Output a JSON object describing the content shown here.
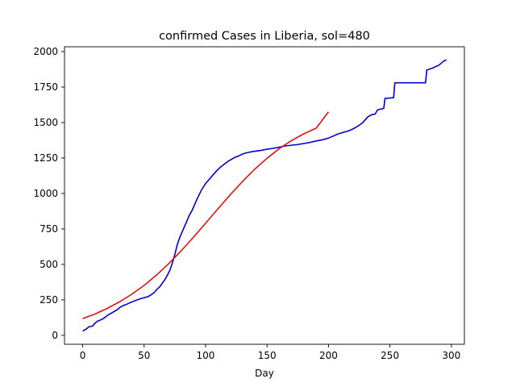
{
  "chart_data": {
    "type": "line",
    "title": "confirmed Cases in Liberia, sol=480",
    "xlabel": "Day",
    "ylabel": "",
    "xlim": [
      -14.8,
      310.6
    ],
    "ylim": [
      -63,
      2034
    ],
    "xticks": [
      0,
      50,
      100,
      150,
      200,
      250,
      300
    ],
    "yticks": [
      0,
      250,
      500,
      750,
      1000,
      1250,
      1500,
      1750,
      2000
    ],
    "grid": false,
    "series": [
      {
        "color": "#0000cc",
        "points": [
          [
            0,
            30
          ],
          [
            3,
            45
          ],
          [
            5,
            60
          ],
          [
            8,
            65
          ],
          [
            10,
            85
          ],
          [
            12,
            100
          ],
          [
            15,
            110
          ],
          [
            18,
            125
          ],
          [
            20,
            140
          ],
          [
            23,
            155
          ],
          [
            26,
            170
          ],
          [
            28,
            180
          ],
          [
            30,
            195
          ],
          [
            33,
            210
          ],
          [
            36,
            220
          ],
          [
            38,
            228
          ],
          [
            40,
            235
          ],
          [
            43,
            245
          ],
          [
            45,
            252
          ],
          [
            47,
            258
          ],
          [
            50,
            265
          ],
          [
            53,
            272
          ],
          [
            55,
            282
          ],
          [
            58,
            300
          ],
          [
            60,
            320
          ],
          [
            63,
            345
          ],
          [
            65,
            370
          ],
          [
            67,
            395
          ],
          [
            69,
            425
          ],
          [
            71,
            460
          ],
          [
            73,
            510
          ],
          [
            75,
            570
          ],
          [
            77,
            640
          ],
          [
            79,
            690
          ],
          [
            81,
            730
          ],
          [
            83,
            770
          ],
          [
            85,
            810
          ],
          [
            87,
            850
          ],
          [
            89,
            880
          ],
          [
            91,
            920
          ],
          [
            93,
            960
          ],
          [
            95,
            995
          ],
          [
            97,
            1030
          ],
          [
            100,
            1070
          ],
          [
            103,
            1100
          ],
          [
            106,
            1130
          ],
          [
            109,
            1160
          ],
          [
            112,
            1185
          ],
          [
            115,
            1205
          ],
          [
            118,
            1225
          ],
          [
            121,
            1240
          ],
          [
            124,
            1255
          ],
          [
            127,
            1265
          ],
          [
            130,
            1278
          ],
          [
            134,
            1288
          ],
          [
            138,
            1295
          ],
          [
            142,
            1300
          ],
          [
            146,
            1305
          ],
          [
            150,
            1312
          ],
          [
            155,
            1318
          ],
          [
            160,
            1326
          ],
          [
            165,
            1335
          ],
          [
            170,
            1340
          ],
          [
            175,
            1345
          ],
          [
            180,
            1352
          ],
          [
            185,
            1360
          ],
          [
            190,
            1370
          ],
          [
            195,
            1378
          ],
          [
            200,
            1390
          ],
          [
            204,
            1405
          ],
          [
            208,
            1420
          ],
          [
            212,
            1430
          ],
          [
            216,
            1440
          ],
          [
            220,
            1455
          ],
          [
            224,
            1475
          ],
          [
            228,
            1500
          ],
          [
            230,
            1520
          ],
          [
            232,
            1540
          ],
          [
            235,
            1555
          ],
          [
            238,
            1560
          ],
          [
            240,
            1590
          ],
          [
            243,
            1595
          ],
          [
            245,
            1600
          ],
          [
            246,
            1670
          ],
          [
            253,
            1675
          ],
          [
            254,
            1780
          ],
          [
            262,
            1780
          ],
          [
            270,
            1780
          ],
          [
            279,
            1780
          ],
          [
            280,
            1870
          ],
          [
            285,
            1885
          ],
          [
            290,
            1905
          ],
          [
            294,
            1935
          ],
          [
            296,
            1940
          ]
        ]
      },
      {
        "color": "#dd1111",
        "points": [
          [
            0,
            118
          ],
          [
            10,
            150
          ],
          [
            20,
            190
          ],
          [
            30,
            236
          ],
          [
            40,
            290
          ],
          [
            50,
            352
          ],
          [
            60,
            424
          ],
          [
            70,
            505
          ],
          [
            80,
            594
          ],
          [
            90,
            690
          ],
          [
            100,
            790
          ],
          [
            110,
            891
          ],
          [
            120,
            990
          ],
          [
            130,
            1084
          ],
          [
            140,
            1171
          ],
          [
            150,
            1248
          ],
          [
            160,
            1316
          ],
          [
            170,
            1373
          ],
          [
            180,
            1421
          ],
          [
            190,
            1460
          ],
          [
            200,
            1575
          ]
        ]
      }
    ]
  }
}
